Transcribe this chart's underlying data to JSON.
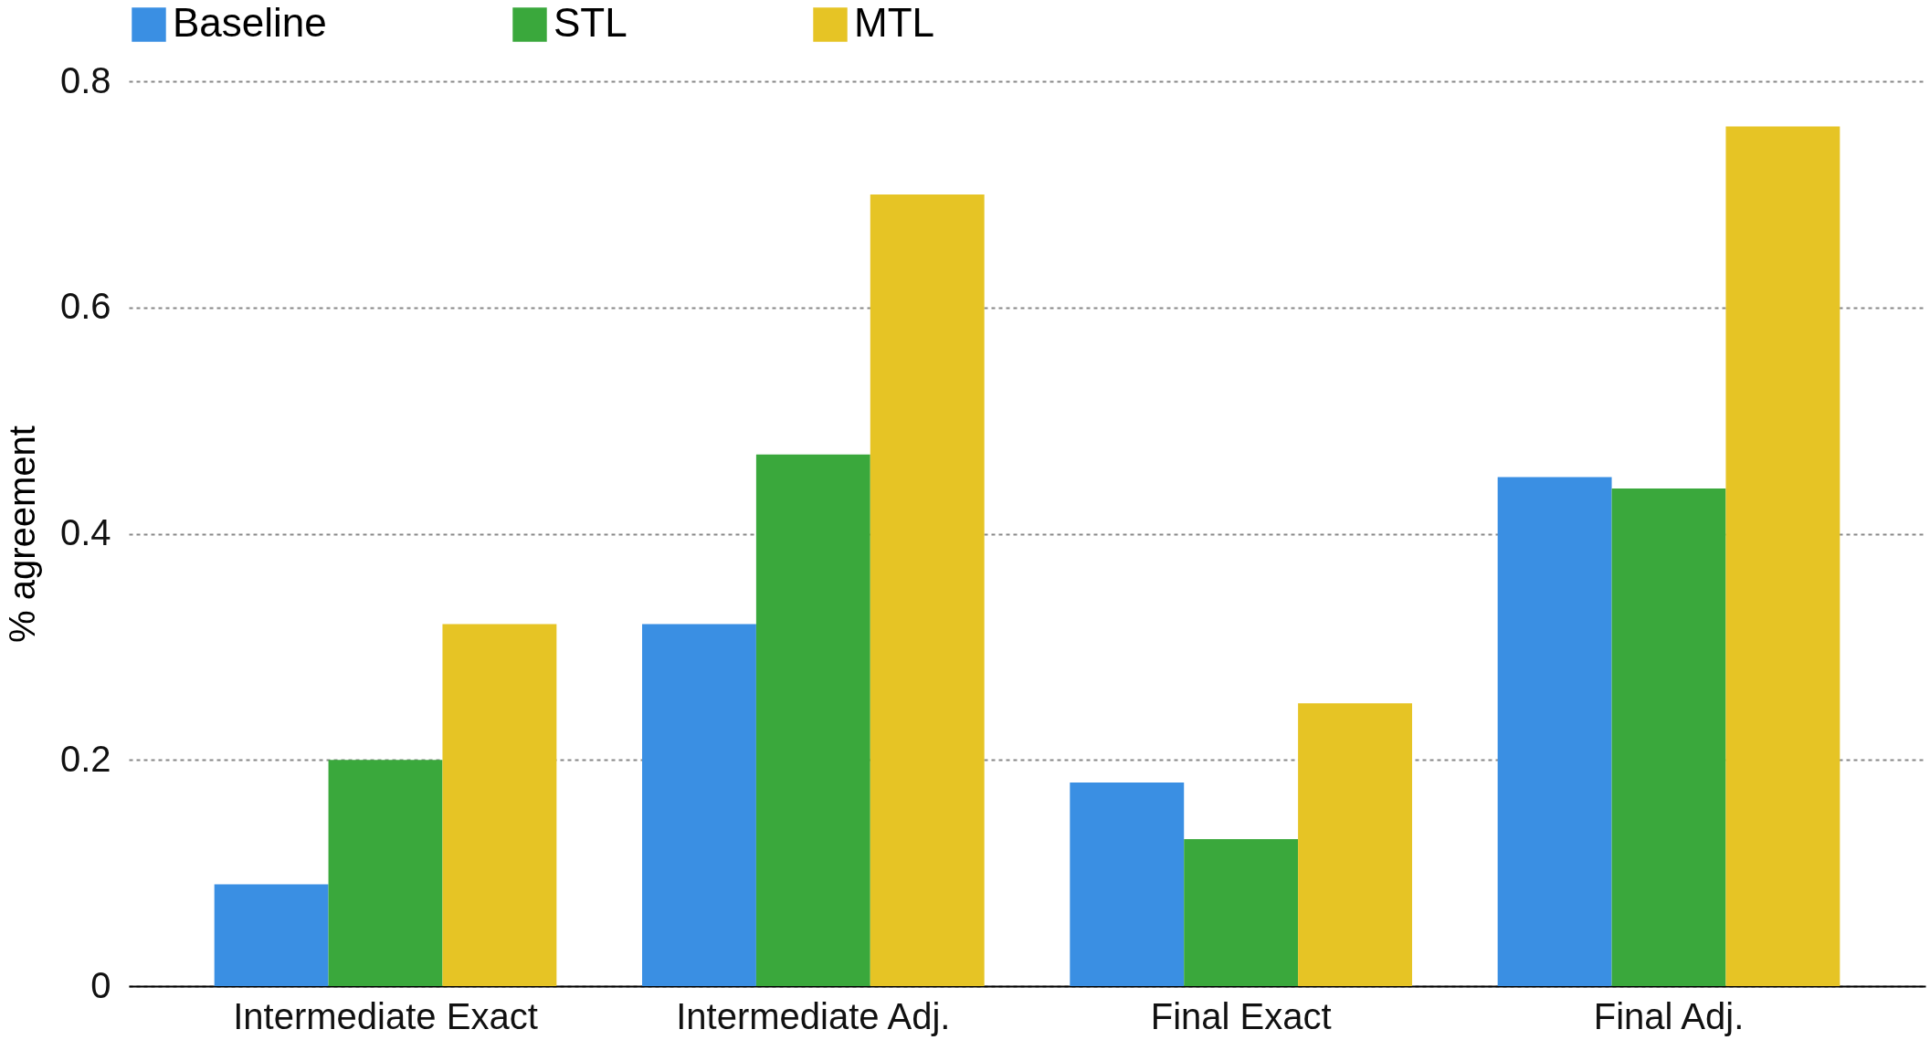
{
  "chart_data": {
    "type": "bar",
    "ylabel": "% agreement",
    "categories": [
      "Intermediate Exact",
      "Intermediate Adj.",
      "Final Exact",
      "Final Adj."
    ],
    "series": [
      {
        "name": "Baseline",
        "color": "#3a8fe3",
        "values": [
          0.09,
          0.32,
          0.18,
          0.45
        ]
      },
      {
        "name": "STL",
        "color": "#3aa83c",
        "values": [
          0.2,
          0.47,
          0.13,
          0.44
        ]
      },
      {
        "name": "MTL",
        "color": "#e6c425",
        "values": [
          0.32,
          0.7,
          0.25,
          0.76
        ]
      }
    ],
    "ylim": [
      0,
      0.8
    ],
    "yticks": [
      0,
      0.2,
      0.4,
      0.6,
      0.8
    ],
    "grid": "y",
    "legend": "top"
  }
}
